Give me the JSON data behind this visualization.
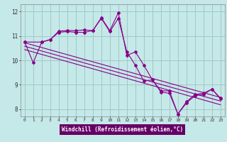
{
  "xlabel": "Windchill (Refroidissement éolien,°C)",
  "bg_color": "#c5e8e8",
  "grid_color": "#a0c8c8",
  "line_color": "#880088",
  "xlabel_bg": "#660066",
  "xlabel_fg": "#ffffff",
  "xlim": [
    -0.5,
    23.5
  ],
  "ylim": [
    7.7,
    12.3
  ],
  "yticks": [
    8,
    9,
    10,
    11,
    12
  ],
  "xticks": [
    0,
    1,
    2,
    3,
    4,
    5,
    6,
    7,
    8,
    9,
    10,
    11,
    12,
    13,
    14,
    15,
    16,
    17,
    18,
    19,
    20,
    21,
    22,
    23
  ],
  "line1_x": [
    0,
    1,
    2,
    3,
    4,
    5,
    6,
    7,
    8,
    9,
    10,
    11,
    12,
    13,
    14,
    15,
    16,
    17,
    18,
    19,
    20,
    21,
    22,
    23
  ],
  "line1_y": [
    10.75,
    9.9,
    10.75,
    10.85,
    11.2,
    11.22,
    11.22,
    11.25,
    11.22,
    11.75,
    11.22,
    11.95,
    10.2,
    10.35,
    9.8,
    9.2,
    8.75,
    8.75,
    7.8,
    8.3,
    8.6,
    8.65,
    8.82,
    8.45
  ],
  "line2_x": [
    0,
    2,
    3,
    4,
    5,
    6,
    7,
    8,
    9,
    10,
    11,
    12,
    13,
    14,
    15,
    16,
    17,
    18,
    19,
    20,
    21,
    22,
    23
  ],
  "line2_y": [
    10.75,
    10.75,
    10.85,
    11.15,
    11.18,
    11.15,
    11.15,
    11.22,
    11.72,
    11.18,
    11.72,
    10.35,
    9.8,
    9.15,
    9.2,
    8.7,
    8.65,
    7.8,
    8.25,
    8.55,
    8.6,
    8.82,
    8.42
  ],
  "line3_x": [
    0,
    23
  ],
  "line3_y": [
    10.72,
    8.48
  ],
  "line4_x": [
    0,
    23
  ],
  "line4_y": [
    10.58,
    8.33
  ],
  "line5_x": [
    0,
    23
  ],
  "line5_y": [
    10.44,
    8.18
  ]
}
